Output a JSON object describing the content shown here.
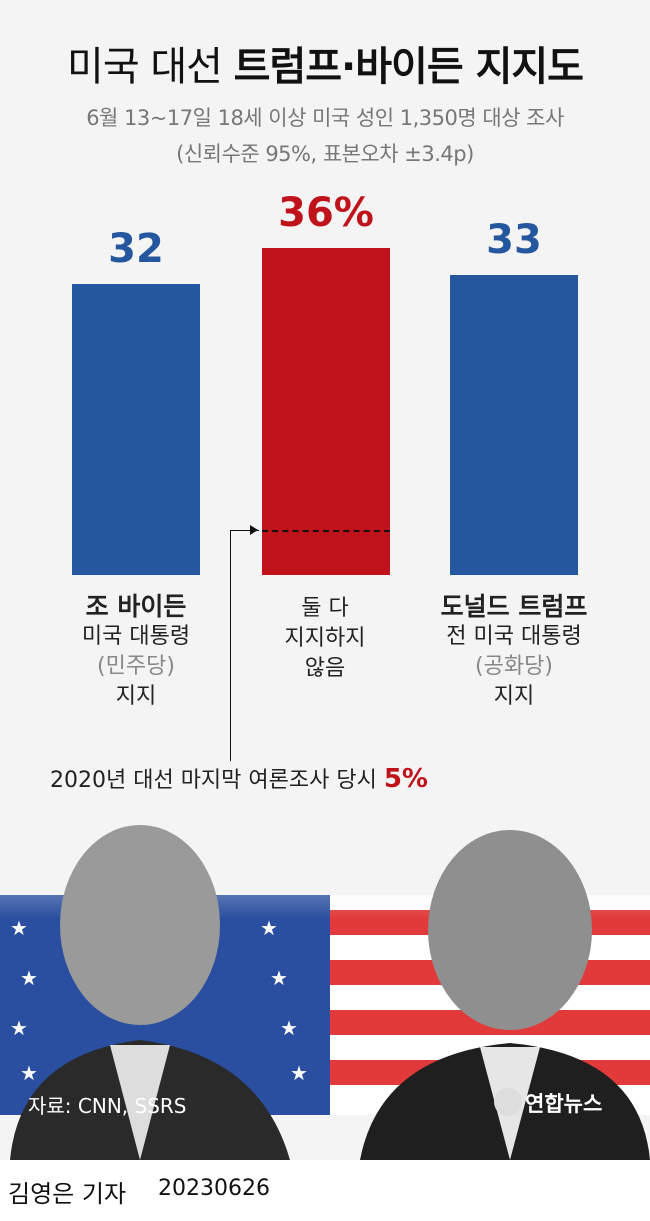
{
  "title": {
    "light": "미국 대선",
    "bold": "트럼프·바이든 지지도"
  },
  "subtitle": [
    "6월 13~17일 18세 이상 미국 성인 1,350명 대상 조사",
    "(신뢰수준 95%, 표본오차 ±3.4p)"
  ],
  "chart_data": {
    "type": "bar",
    "categories": [
      "조 바이든 미국 대통령 (민주당) 지지",
      "둘 다 지지하지 않음",
      "도널드 트럼프 전 미국 대통령 (공화당) 지지"
    ],
    "values": [
      32,
      36,
      33
    ],
    "value_labels": [
      "32",
      "36%",
      "33"
    ],
    "colors": [
      "#24579d",
      "#c0121a",
      "#24579d"
    ],
    "annotation": {
      "text": "2020년 대선 마지막 여론조사 당시",
      "value_label": "5%",
      "value": 5,
      "category": "둘 다 지지하지 않음"
    }
  },
  "category_lines": [
    [
      "조 바이든",
      "미국 대통령",
      "(민주당)",
      "지지"
    ],
    [
      "둘 다",
      "지지하지",
      "않음"
    ],
    [
      "도널드 트럼프",
      "전 미국 대통령",
      "(공화당)",
      "지지"
    ]
  ],
  "source": "자료: CNN, SSRS",
  "logo": "연합뉴스",
  "byline": {
    "author": "김영은 기자",
    "date": "20230626"
  }
}
